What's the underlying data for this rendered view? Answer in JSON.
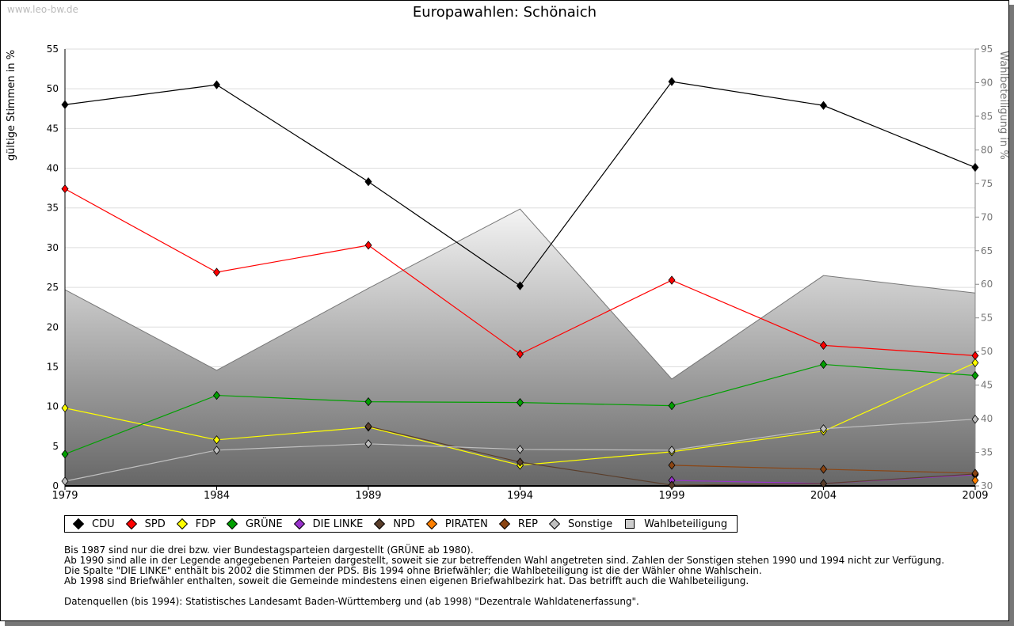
{
  "watermark": "www.leo-bw.de",
  "notes": [
    "Bis 1987 sind nur die drei bzw. vier Bundestagsparteien dargestellt (GRÜNE ab 1980).",
    "Ab 1990 sind alle in der Legende angegebenen Parteien dargestellt, soweit sie zur betreffenden Wahl angetreten sind. Zahlen der Sonstigen stehen 1990 und 1994 nicht zur Verfügung.",
    "Die Spalte \"DIE LINKE\" enthält bis 2002 die Stimmen der PDS. Bis 1994 ohne Briefwähler; die Wahlbeteiligung ist die der Wähler ohne Wahlschein.",
    "Ab 1998 sind Briefwähler enthalten, soweit die Gemeinde mindestens einen eigenen Briefwahlbezirk hat. Das betrifft auch die Wahlbeteiligung.",
    "",
    "Datenquellen (bis 1994): Statistisches Landesamt Baden-Württemberg und (ab 1998) \"Dezentrale Wahldatenerfassung\"."
  ],
  "chart_data": {
    "type": "line",
    "title": "Europawahlen: Schönaich",
    "ylabel": "gültige Stimmen in %",
    "y2label": "Wahlbeteiligung in %",
    "x": [
      1979,
      1984,
      1989,
      1994,
      1999,
      2004,
      2009
    ],
    "ylim": [
      0,
      55
    ],
    "yticks": [
      0,
      5,
      10,
      15,
      20,
      25,
      30,
      35,
      40,
      45,
      50,
      55
    ],
    "y2lim": [
      30,
      95
    ],
    "y2ticks": [
      30,
      35,
      40,
      45,
      50,
      55,
      60,
      65,
      70,
      75,
      80,
      85,
      90,
      95
    ],
    "legend_position": "bottom",
    "series": [
      {
        "name": "CDU",
        "color": "#000000",
        "values": [
          48.0,
          50.5,
          38.3,
          25.2,
          50.9,
          47.9,
          40.1
        ]
      },
      {
        "name": "SPD",
        "color": "#ff0000",
        "values": [
          37.4,
          26.9,
          30.3,
          16.6,
          25.9,
          17.7,
          16.4
        ]
      },
      {
        "name": "FDP",
        "color": "#ffff00",
        "values": [
          9.8,
          5.8,
          7.4,
          2.6,
          4.3,
          6.9,
          15.5
        ]
      },
      {
        "name": "GRÜNE",
        "color": "#00a000",
        "values": [
          4.0,
          11.4,
          10.6,
          10.5,
          10.1,
          15.3,
          13.9
        ]
      },
      {
        "name": "DIE LINKE",
        "color": "#9932cc",
        "values": [
          null,
          null,
          null,
          null,
          0.7,
          0.3,
          1.4
        ]
      },
      {
        "name": "NPD",
        "color": "#5a3e2b",
        "values": [
          null,
          null,
          7.5,
          3.0,
          0.1,
          0.3,
          1.5
        ]
      },
      {
        "name": "PIRATEN",
        "color": "#ff8000",
        "values": [
          null,
          null,
          null,
          null,
          null,
          null,
          0.7
        ]
      },
      {
        "name": "REP",
        "color": "#8b4513",
        "values": [
          null,
          null,
          null,
          null,
          2.6,
          2.1,
          1.6
        ]
      },
      {
        "name": "Sonstige",
        "color": "#c0c0c0",
        "values": [
          0.6,
          4.5,
          5.3,
          4.6,
          4.5,
          7.2,
          8.4
        ]
      }
    ],
    "turnout": {
      "name": "Wahlbeteiligung",
      "color": "#c8c8c8",
      "values": [
        59.2,
        47.2,
        59.4,
        71.2,
        45.9,
        61.3,
        58.7
      ]
    }
  }
}
